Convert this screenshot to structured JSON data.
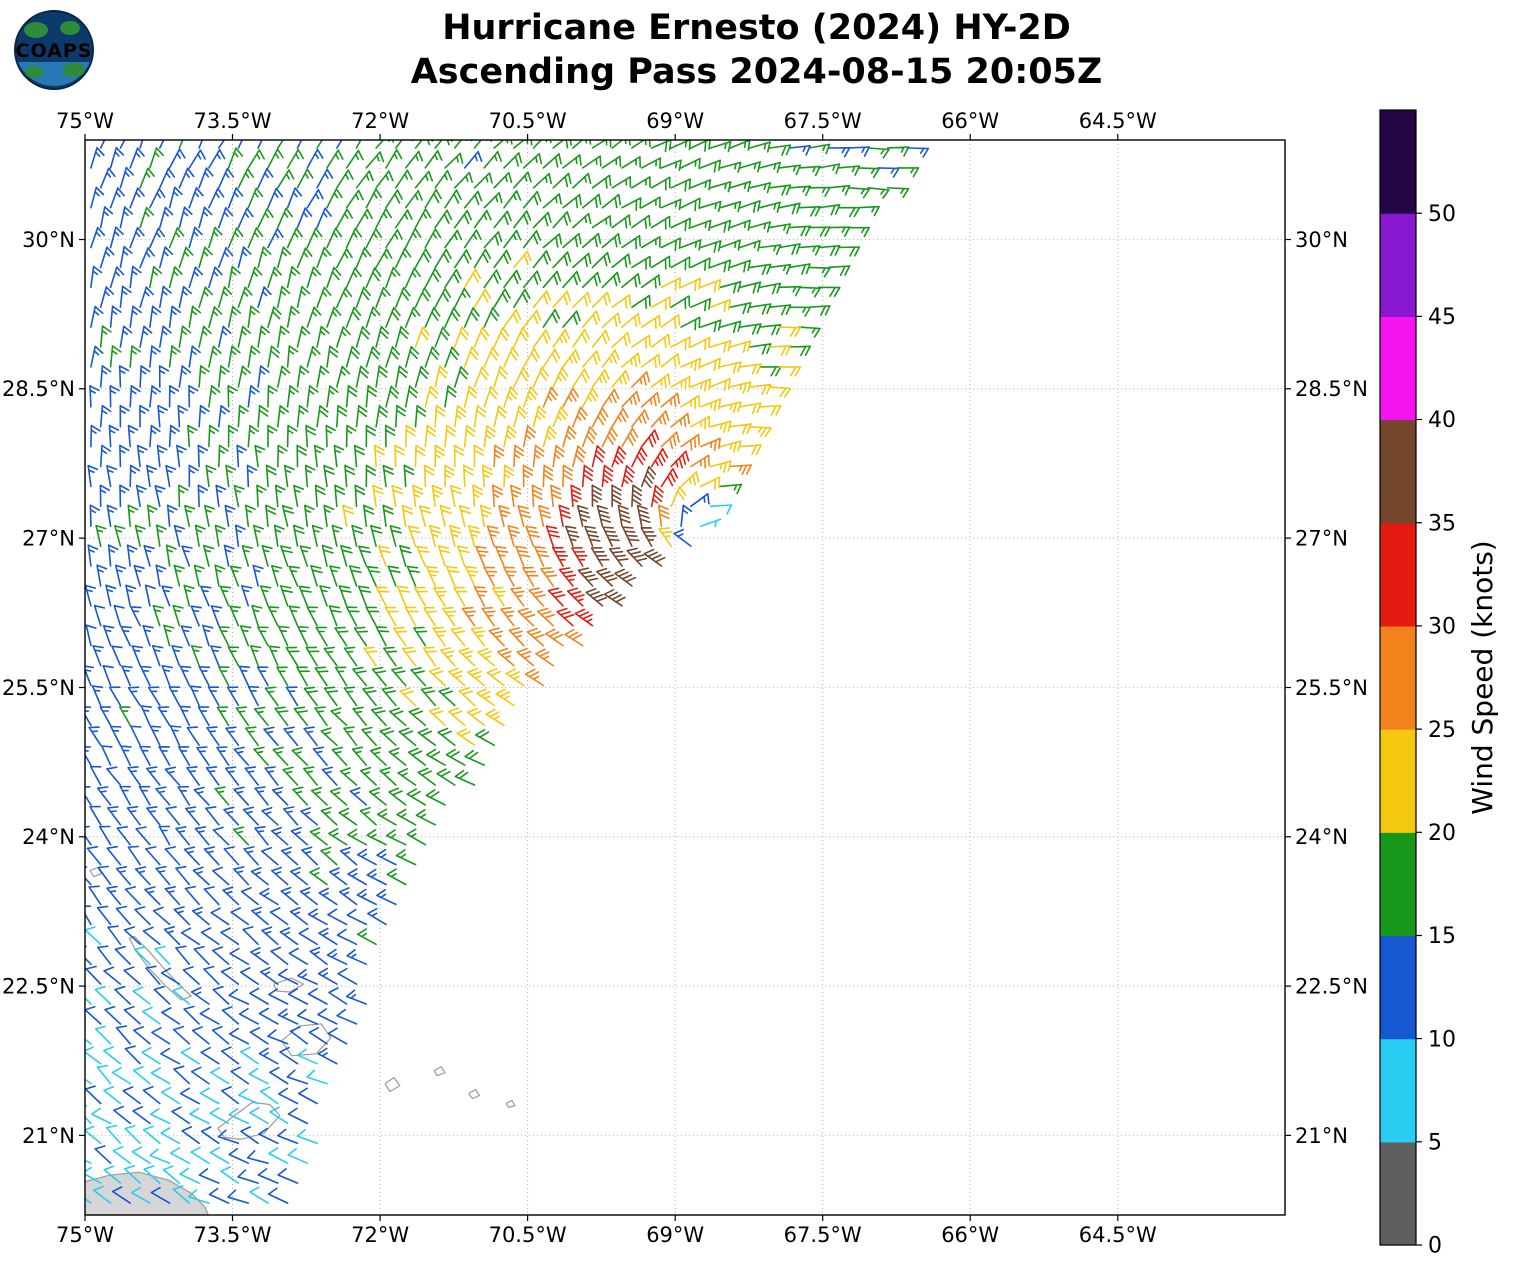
{
  "header": {
    "logo_text": "COAPS"
  },
  "chart_data": {
    "type": "wind_barb_map",
    "title": "Hurricane Ernesto (2024) HY-2D",
    "subtitle": "Ascending Pass 2024-08-15 20:05Z",
    "lon_range": [
      -75.0,
      -62.8
    ],
    "lat_range": [
      20.2,
      31.0
    ],
    "grid": true,
    "x_ticks": [
      {
        "lon": -75.0,
        "label": "75°W"
      },
      {
        "lon": -73.5,
        "label": "73.5°W"
      },
      {
        "lon": -72.0,
        "label": "72°W"
      },
      {
        "lon": -70.5,
        "label": "70.5°W"
      },
      {
        "lon": -69.0,
        "label": "69°W"
      },
      {
        "lon": -67.5,
        "label": "67.5°W"
      },
      {
        "lon": -66.0,
        "label": "66°W"
      },
      {
        "lon": -64.5,
        "label": "64.5°W"
      }
    ],
    "y_ticks": [
      {
        "lat": 30.0,
        "label": "30°N"
      },
      {
        "lat": 28.5,
        "label": "28.5°N"
      },
      {
        "lat": 27.0,
        "label": "27°N"
      },
      {
        "lat": 25.5,
        "label": "25.5°N"
      },
      {
        "lat": 24.0,
        "label": "24°N"
      },
      {
        "lat": 22.5,
        "label": "22.5°N"
      },
      {
        "lat": 21.0,
        "label": "21°N"
      }
    ],
    "colorbar": {
      "label": "Wind Speed (knots)",
      "tick_labels": [
        "0",
        "5",
        "10",
        "15",
        "20",
        "25",
        "30",
        "35",
        "40",
        "45",
        "50"
      ],
      "tick_values": [
        0,
        5,
        10,
        15,
        20,
        25,
        30,
        35,
        40,
        45,
        50
      ],
      "value_max": 55,
      "segment_bounds": [
        0,
        5,
        10,
        15,
        20,
        25,
        30,
        35,
        40,
        45,
        50,
        55
      ],
      "segment_colors": [
        "#5f5f5f",
        "#29cdf2",
        "#1657d2",
        "#18981b",
        "#f3c80f",
        "#f2821c",
        "#e41b10",
        "#74462b",
        "#f513f0",
        "#8718cf",
        "#230646"
      ]
    },
    "wind_field": {
      "description": "HY-2D scatterometer wind barbs, knots; cyclonic vortex of Hurricane Ernesto",
      "center_lon": -68.7,
      "center_lat": 27.05,
      "vmax_kt": 38,
      "rmax_deg": 0.75,
      "decay_exp": 0.52,
      "asymmetry_amp": 0.5,
      "asymmetry_dir_deg": 235,
      "asymmetry_scale_deg": 3.5,
      "inflow_deg": 20,
      "background_u_kt": -2.5,
      "background_v_kt": -1.0,
      "speed_cap_kt": 38.5,
      "barb_spacing_deg": 0.2,
      "swath_right_edge": [
        [
          20.2,
          -72.9
        ],
        [
          22.5,
          -72.05
        ],
        [
          24.0,
          -71.4
        ],
        [
          25.5,
          -70.35
        ],
        [
          27.0,
          -68.75
        ],
        [
          28.5,
          -68.0
        ],
        [
          30.0,
          -67.15
        ],
        [
          31.0,
          -66.5
        ]
      ]
    },
    "coastlines": [
      {
        "name": "hispaniola-coast",
        "fill": true,
        "points": [
          [
            -75.06,
            20.14
          ],
          [
            -75.06,
            20.52
          ],
          [
            -74.75,
            20.6
          ],
          [
            -74.45,
            20.63
          ],
          [
            -74.15,
            20.55
          ],
          [
            -73.92,
            20.42
          ],
          [
            -73.78,
            20.28
          ],
          [
            -73.72,
            20.14
          ]
        ]
      },
      {
        "name": "great-inagua",
        "fill": false,
        "points": [
          [
            -73.65,
            21.07
          ],
          [
            -73.48,
            21.2
          ],
          [
            -73.3,
            21.33
          ],
          [
            -73.12,
            21.31
          ],
          [
            -73.02,
            21.2
          ],
          [
            -73.18,
            21.02
          ],
          [
            -73.42,
            20.96
          ],
          [
            -73.58,
            20.98
          ],
          [
            -73.65,
            21.07
          ]
        ]
      },
      {
        "name": "crooked-acklins",
        "fill": false,
        "points": [
          [
            -74.5,
            23.0
          ],
          [
            -74.35,
            22.85
          ],
          [
            -74.2,
            22.68
          ],
          [
            -74.05,
            22.52
          ],
          [
            -73.92,
            22.4
          ],
          [
            -74.02,
            22.36
          ],
          [
            -74.18,
            22.5
          ],
          [
            -74.35,
            22.68
          ],
          [
            -74.48,
            22.85
          ],
          [
            -74.55,
            22.98
          ],
          [
            -74.5,
            23.0
          ]
        ]
      },
      {
        "name": "mayaguana",
        "fill": false,
        "points": [
          [
            -73.08,
            22.52
          ],
          [
            -72.9,
            22.58
          ],
          [
            -72.78,
            22.52
          ],
          [
            -72.92,
            22.44
          ],
          [
            -73.05,
            22.45
          ],
          [
            -73.08,
            22.52
          ]
        ]
      },
      {
        "name": "caicos-bank",
        "fill": false,
        "points": [
          [
            -73.0,
            21.95
          ],
          [
            -72.82,
            22.1
          ],
          [
            -72.6,
            22.12
          ],
          [
            -72.5,
            21.98
          ],
          [
            -72.65,
            21.82
          ],
          [
            -72.9,
            21.8
          ],
          [
            -73.0,
            21.95
          ]
        ]
      },
      {
        "name": "turks",
        "fill": false,
        "points": [
          [
            -71.95,
            21.52
          ],
          [
            -71.86,
            21.58
          ],
          [
            -71.8,
            21.5
          ],
          [
            -71.9,
            21.44
          ],
          [
            -71.95,
            21.52
          ]
        ]
      },
      {
        "name": "cay-1",
        "fill": false,
        "points": [
          [
            -71.45,
            21.65
          ],
          [
            -71.38,
            21.69
          ],
          [
            -71.34,
            21.63
          ],
          [
            -71.42,
            21.6
          ],
          [
            -71.45,
            21.65
          ]
        ]
      },
      {
        "name": "cay-2",
        "fill": false,
        "points": [
          [
            -71.1,
            21.42
          ],
          [
            -71.03,
            21.46
          ],
          [
            -70.99,
            21.4
          ],
          [
            -71.06,
            21.37
          ],
          [
            -71.1,
            21.42
          ]
        ]
      },
      {
        "name": "cay-3",
        "fill": false,
        "points": [
          [
            -70.72,
            21.32
          ],
          [
            -70.66,
            21.35
          ],
          [
            -70.63,
            21.3
          ],
          [
            -70.69,
            21.28
          ],
          [
            -70.72,
            21.32
          ]
        ]
      },
      {
        "name": "samana-cay",
        "fill": false,
        "points": [
          [
            -74.95,
            23.66
          ],
          [
            -74.87,
            23.69
          ],
          [
            -74.83,
            23.63
          ],
          [
            -74.91,
            23.6
          ],
          [
            -74.95,
            23.66
          ]
        ]
      }
    ]
  }
}
